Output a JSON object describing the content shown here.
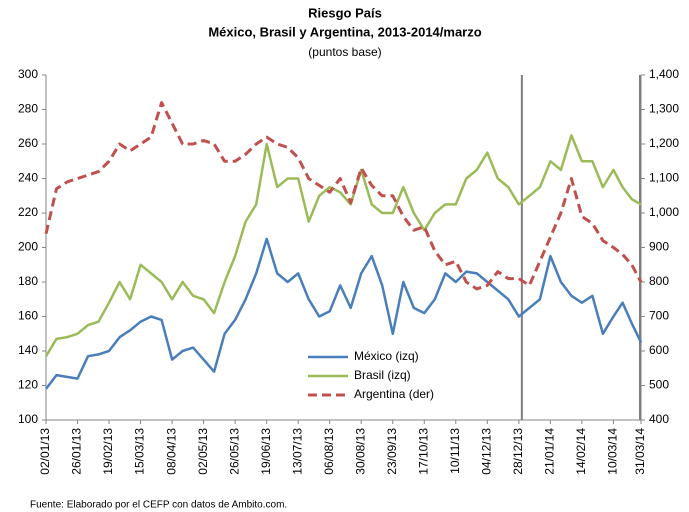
{
  "chart_data": {
    "type": "line",
    "title": "Riesgo País",
    "subtitle": "México, Brasil y Argentina, 2013-2014/marzo",
    "unit_label": "(puntos base)",
    "source": "Fuente: Elaborado por el CEFP con datos de Ambito.com.",
    "x": [
      "02/01/13",
      "10/01/13",
      "18/01/13",
      "26/01/13",
      "03/02/13",
      "11/02/13",
      "19/02/13",
      "27/02/13",
      "07/03/13",
      "15/03/13",
      "23/03/13",
      "31/03/13",
      "08/04/13",
      "16/04/13",
      "24/04/13",
      "02/05/13",
      "10/05/13",
      "18/05/13",
      "26/05/13",
      "03/06/13",
      "11/06/13",
      "19/06/13",
      "27/06/13",
      "05/07/13",
      "13/07/13",
      "21/07/13",
      "29/07/13",
      "06/08/13",
      "14/08/13",
      "22/08/13",
      "30/08/13",
      "07/09/13",
      "15/09/13",
      "23/09/13",
      "01/10/13",
      "09/10/13",
      "17/10/13",
      "25/10/13",
      "02/11/13",
      "10/11/13",
      "18/11/13",
      "26/11/13",
      "04/12/13",
      "12/12/13",
      "20/12/13",
      "28/12/13",
      "05/01/14",
      "13/01/14",
      "21/01/14",
      "29/01/14",
      "06/02/14",
      "14/02/14",
      "22/02/14",
      "02/03/14",
      "10/03/14",
      "17/03/14",
      "24/03/14",
      "31/03/14"
    ],
    "xticks": [
      "02/01/13",
      "26/01/13",
      "19/02/13",
      "15/03/13",
      "08/04/13",
      "02/05/13",
      "26/05/13",
      "19/06/13",
      "13/07/13",
      "06/08/13",
      "30/08/13",
      "23/09/13",
      "17/10/13",
      "10/11/13",
      "04/12/13",
      "28/12/13",
      "21/01/14",
      "14/02/14",
      "10/03/14",
      "31/03/14"
    ],
    "ylim": [
      100,
      300
    ],
    "yticks": [
      100,
      120,
      140,
      160,
      180,
      200,
      220,
      240,
      260,
      280,
      300
    ],
    "y2lim": [
      400,
      1400
    ],
    "y2ticks": [
      400,
      500,
      600,
      700,
      800,
      900,
      {
        "value": 1000,
        "label": "1,000"
      },
      {
        "value": 1100,
        "label": "1,100"
      },
      {
        "value": 1200,
        "label": "1,200"
      },
      {
        "value": 1300,
        "label": "1,300"
      },
      {
        "value": 1400,
        "label": "1,400"
      }
    ],
    "grid": false,
    "series": [
      {
        "name": "México (izq)",
        "color": "#4a7ebb",
        "values": [
          118,
          126,
          125,
          124,
          137,
          138,
          140,
          148,
          152,
          157,
          160,
          158,
          135,
          140,
          142,
          135,
          128,
          150,
          158,
          170,
          185,
          205,
          185,
          180,
          185,
          170,
          160,
          163,
          178,
          165,
          185,
          195,
          178,
          150,
          180,
          165,
          162,
          170,
          185,
          180,
          186,
          185,
          180,
          175,
          170,
          160,
          165,
          170,
          195,
          180,
          172,
          168,
          172,
          150,
          160,
          168,
          156,
          145
        ]
      },
      {
        "name": "Brasil (izq)",
        "color": "#9bbb59",
        "values": [
          137,
          147,
          148,
          150,
          155,
          157,
          168,
          180,
          170,
          190,
          185,
          180,
          170,
          180,
          172,
          170,
          162,
          180,
          195,
          215,
          225,
          260,
          235,
          240,
          240,
          215,
          230,
          235,
          232,
          225,
          245,
          225,
          220,
          220,
          235,
          220,
          210,
          220,
          225,
          225,
          240,
          245,
          255,
          240,
          235,
          225,
          230,
          235,
          250,
          245,
          265,
          250,
          250,
          235,
          245,
          235,
          228,
          225
        ]
      },
      {
        "name": "Argentina (der)",
        "color": "#c0504d",
        "axis": "y2",
        "dashed": true,
        "values": [
          940,
          1070,
          1090,
          1100,
          1110,
          1120,
          1150,
          1200,
          1180,
          1200,
          1220,
          1320,
          1260,
          1200,
          1200,
          1210,
          1200,
          1150,
          1150,
          1170,
          1200,
          1220,
          1200,
          1190,
          1160,
          1100,
          1080,
          1060,
          1100,
          1030,
          1130,
          1080,
          1050,
          1050,
          990,
          950,
          960,
          890,
          850,
          860,
          800,
          780,
          790,
          830,
          810,
          810,
          790,
          860,
          930,
          1000,
          1100,
          990,
          970,
          920,
          900,
          880,
          850,
          800
        ]
      }
    ]
  }
}
